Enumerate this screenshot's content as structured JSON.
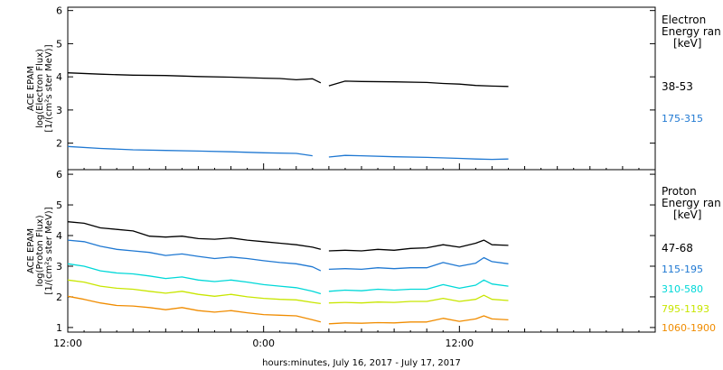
{
  "chart_data": [
    {
      "type": "line",
      "panel": "electron",
      "ylabel_lines": [
        "ACE EPAM",
        "log(Electron Flux)",
        "[1/(cm²s ster MeV)]"
      ],
      "legend_title_lines": [
        "Electron",
        "Energy ran",
        "[keV]"
      ],
      "legend_placement": "right",
      "ylim": [
        1.2,
        6.1
      ],
      "yticks": [
        "2",
        "3",
        "4",
        "5",
        "6"
      ],
      "x_hours_range": [
        0,
        36
      ],
      "series": [
        {
          "name": "38-53",
          "color": "#000000",
          "x": [
            0,
            2,
            4,
            6,
            8,
            10,
            12,
            13,
            14,
            15,
            15.5,
            16,
            17,
            18,
            20,
            22,
            23,
            24,
            25,
            26,
            27
          ],
          "y": [
            4.12,
            4.08,
            4.05,
            4.04,
            4.01,
            3.99,
            3.96,
            3.95,
            3.91,
            3.94,
            3.82,
            3.73,
            3.87,
            3.86,
            3.85,
            3.83,
            3.8,
            3.78,
            3.74,
            3.72,
            3.71
          ]
        },
        {
          "name": "175-315",
          "color": "#1f78d2",
          "x": [
            0,
            2,
            4,
            6,
            8,
            10,
            12,
            14,
            15,
            16,
            17,
            18,
            20,
            22,
            24,
            25,
            26,
            27
          ],
          "y": [
            1.9,
            1.84,
            1.8,
            1.78,
            1.76,
            1.74,
            1.71,
            1.69,
            1.62,
            1.58,
            1.63,
            1.62,
            1.59,
            1.57,
            1.54,
            1.52,
            1.51,
            1.52
          ]
        }
      ]
    },
    {
      "type": "line",
      "panel": "proton",
      "ylabel_lines": [
        "ACE EPAM",
        "log(Proton Flux)",
        "[1/(cm²s ster MeV)]"
      ],
      "legend_title_lines": [
        "Proton",
        "Energy ran",
        "[keV]"
      ],
      "legend_placement": "right",
      "ylim": [
        0.85,
        6.15
      ],
      "yticks": [
        "1",
        "2",
        "3",
        "4",
        "5",
        "6"
      ],
      "x_hours_range": [
        0,
        36
      ],
      "series": [
        {
          "name": "47-68",
          "color": "#000000",
          "x": [
            0,
            1,
            2,
            3,
            4,
            5,
            6,
            7,
            8,
            9,
            10,
            11,
            12,
            13,
            14,
            15,
            15.5,
            16,
            17,
            18,
            19,
            20,
            21,
            22,
            23,
            24,
            25,
            25.5,
            26,
            27
          ],
          "y": [
            4.45,
            4.4,
            4.25,
            4.2,
            4.15,
            3.98,
            3.95,
            3.98,
            3.9,
            3.88,
            3.92,
            3.85,
            3.8,
            3.75,
            3.7,
            3.62,
            3.55,
            3.5,
            3.52,
            3.5,
            3.55,
            3.52,
            3.58,
            3.6,
            3.7,
            3.62,
            3.75,
            3.85,
            3.7,
            3.68
          ]
        },
        {
          "name": "115-195",
          "color": "#1f78d2",
          "x": [
            0,
            1,
            2,
            3,
            4,
            5,
            6,
            7,
            8,
            9,
            10,
            11,
            12,
            13,
            14,
            15,
            15.5,
            16,
            17,
            18,
            19,
            20,
            21,
            22,
            23,
            24,
            25,
            25.5,
            26,
            27
          ],
          "y": [
            3.85,
            3.8,
            3.65,
            3.55,
            3.5,
            3.45,
            3.35,
            3.4,
            3.32,
            3.25,
            3.3,
            3.25,
            3.18,
            3.12,
            3.08,
            2.98,
            2.85,
            2.9,
            2.92,
            2.9,
            2.95,
            2.92,
            2.95,
            2.95,
            3.12,
            3.0,
            3.1,
            3.28,
            3.15,
            3.08
          ]
        },
        {
          "name": "310-580",
          "color": "#00d8d8",
          "x": [
            0,
            1,
            2,
            3,
            4,
            5,
            6,
            7,
            8,
            9,
            10,
            11,
            12,
            13,
            14,
            15,
            15.5,
            16,
            17,
            18,
            19,
            20,
            21,
            22,
            23,
            24,
            25,
            25.5,
            26,
            27
          ],
          "y": [
            3.08,
            3.0,
            2.85,
            2.78,
            2.75,
            2.68,
            2.6,
            2.65,
            2.55,
            2.5,
            2.55,
            2.48,
            2.4,
            2.35,
            2.3,
            2.18,
            2.1,
            2.18,
            2.22,
            2.2,
            2.25,
            2.22,
            2.25,
            2.25,
            2.4,
            2.28,
            2.38,
            2.55,
            2.42,
            2.35
          ]
        },
        {
          "name": "795-1193",
          "color": "#c8e600",
          "x": [
            0,
            1,
            2,
            3,
            4,
            5,
            6,
            7,
            8,
            9,
            10,
            11,
            12,
            13,
            14,
            15,
            15.5,
            16,
            17,
            18,
            19,
            20,
            21,
            22,
            23,
            24,
            25,
            25.5,
            26,
            27
          ],
          "y": [
            2.55,
            2.48,
            2.35,
            2.28,
            2.25,
            2.18,
            2.12,
            2.18,
            2.08,
            2.02,
            2.08,
            2.0,
            1.95,
            1.92,
            1.9,
            1.82,
            1.78,
            1.8,
            1.82,
            1.8,
            1.83,
            1.82,
            1.85,
            1.85,
            1.95,
            1.85,
            1.92,
            2.05,
            1.92,
            1.88
          ]
        },
        {
          "name": "1060-1900",
          "color": "#f08c00",
          "x": [
            0,
            1,
            2,
            3,
            4,
            5,
            6,
            7,
            8,
            9,
            10,
            11,
            12,
            13,
            14,
            15,
            15.5,
            16,
            17,
            18,
            19,
            20,
            21,
            22,
            23,
            24,
            25,
            25.5,
            26,
            27
          ],
          "y": [
            2.02,
            1.92,
            1.8,
            1.72,
            1.7,
            1.65,
            1.58,
            1.65,
            1.55,
            1.5,
            1.55,
            1.48,
            1.42,
            1.4,
            1.38,
            1.25,
            1.18,
            1.12,
            1.15,
            1.14,
            1.16,
            1.15,
            1.18,
            1.18,
            1.3,
            1.2,
            1.28,
            1.38,
            1.28,
            1.25
          ]
        }
      ]
    }
  ],
  "x_tick_labels": [
    {
      "h": 0,
      "label": "12:00"
    },
    {
      "h": 12,
      "label": "0:00"
    },
    {
      "h": 24,
      "label": "12:00"
    }
  ],
  "x_axis_title": "hours:minutes, July 16, 2017 - July 17, 2017"
}
